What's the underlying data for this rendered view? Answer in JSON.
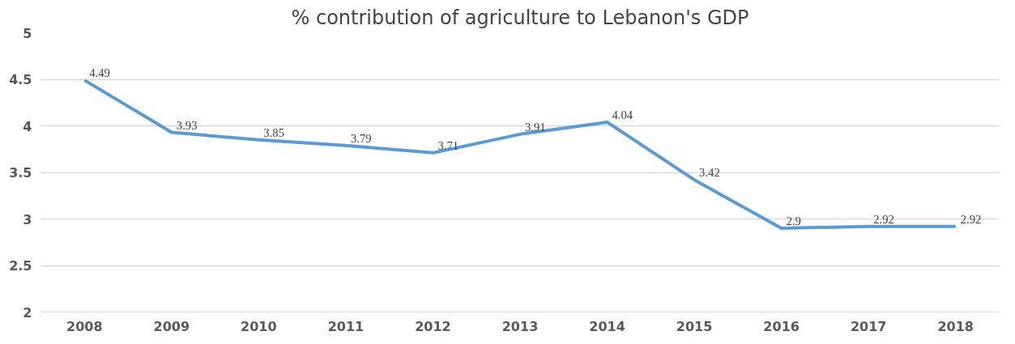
{
  "chart_data": {
    "type": "line",
    "title": "% contribution of agriculture to Lebanon's GDP",
    "categories": [
      "2008",
      "2009",
      "2010",
      "2011",
      "2012",
      "2013",
      "2014",
      "2015",
      "2016",
      "2017",
      "2018"
    ],
    "series": [
      {
        "color": "#5b9bd5",
        "values": [
          4.49,
          3.93,
          3.85,
          3.79,
          3.71,
          3.91,
          4.04,
          3.42,
          2.9,
          2.92,
          2.92
        ]
      }
    ],
    "ylim": [
      2,
      5
    ],
    "yticks": [
      2,
      2.5,
      3,
      3.5,
      4,
      4.5,
      5
    ],
    "grid": "y",
    "data_labels": true,
    "marker": "none",
    "line_style": "solid"
  }
}
